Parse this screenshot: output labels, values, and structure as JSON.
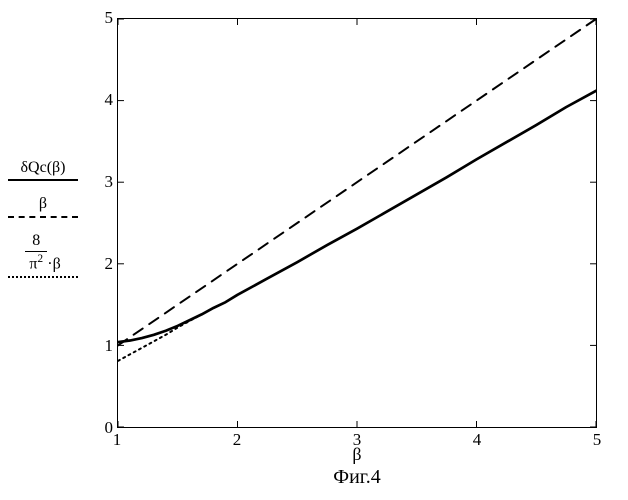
{
  "figure": {
    "caption": "Фиг.4",
    "xlabel": "β",
    "plot_bg": "#ffffff",
    "border_color": "#000000",
    "x_axis": {
      "min": 1,
      "max": 5,
      "ticks": [
        1,
        2,
        3,
        4,
        5
      ]
    },
    "y_axis": {
      "min": 0,
      "max": 5,
      "ticks": [
        0,
        1,
        2,
        3,
        4,
        5
      ]
    },
    "legend": {
      "series1": {
        "label_html": "δQc(β)",
        "style": "solid",
        "width": 2.7
      },
      "series2": {
        "label_html": "β",
        "style": "dashed",
        "width": 2.0
      },
      "series3": {
        "label_html": "(8/π²)·β",
        "style": "dotted",
        "width": 2.0
      }
    },
    "series": [
      {
        "name": "deltaQc",
        "label": "δQc(β)",
        "style": "solid",
        "color": "#000000",
        "width": 2.7,
        "points": [
          [
            1.0,
            1.04
          ],
          [
            1.1,
            1.06
          ],
          [
            1.2,
            1.09
          ],
          [
            1.3,
            1.13
          ],
          [
            1.4,
            1.18
          ],
          [
            1.5,
            1.24
          ],
          [
            1.6,
            1.31
          ],
          [
            1.7,
            1.38
          ],
          [
            1.8,
            1.46
          ],
          [
            1.9,
            1.53
          ],
          [
            2.0,
            1.62
          ],
          [
            2.25,
            1.82
          ],
          [
            2.5,
            2.02
          ],
          [
            2.75,
            2.23
          ],
          [
            3.0,
            2.43
          ],
          [
            3.25,
            2.64
          ],
          [
            3.5,
            2.85
          ],
          [
            3.75,
            3.06
          ],
          [
            4.0,
            3.28
          ],
          [
            4.25,
            3.49
          ],
          [
            4.5,
            3.7
          ],
          [
            4.75,
            3.92
          ],
          [
            5.0,
            4.12
          ]
        ]
      },
      {
        "name": "beta",
        "label": "β",
        "style": "dashed",
        "color": "#000000",
        "width": 2.0,
        "dash": "11 8",
        "points": [
          [
            1.0,
            1.0
          ],
          [
            5.0,
            5.0
          ]
        ]
      },
      {
        "name": "eight_over_pi2_beta",
        "label": "(8/π²)·β",
        "style": "dotted",
        "color": "#000000",
        "width": 2.0,
        "dash": "2 4",
        "points": [
          [
            1.0,
            0.81
          ],
          [
            1.1,
            0.89
          ],
          [
            1.2,
            0.97
          ],
          [
            1.3,
            1.05
          ],
          [
            1.4,
            1.13
          ],
          [
            1.5,
            1.22
          ],
          [
            1.6,
            1.3
          ],
          [
            1.7,
            1.38
          ]
        ]
      }
    ]
  }
}
